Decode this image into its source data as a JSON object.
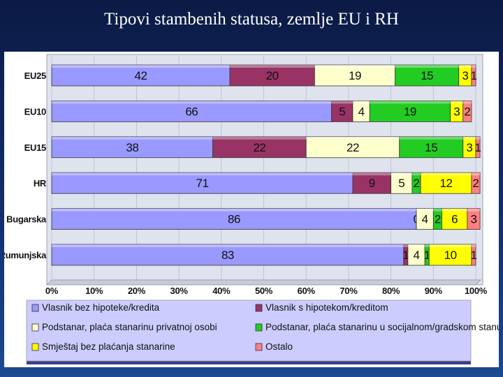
{
  "slide": {
    "title": "Tipovi stambenih statusa, zemlje EU i RH"
  },
  "chart_data": {
    "type": "bar",
    "orientation": "horizontal",
    "stacked": true,
    "categories": [
      "EU25",
      "EU10",
      "EU15",
      "HR",
      "Bugarska",
      "Rumunjska"
    ],
    "xlim": [
      0,
      100
    ],
    "xticks": [
      "0%",
      "10%",
      "20%",
      "30%",
      "40%",
      "50%",
      "60%",
      "70%",
      "80%",
      "90%",
      "100%"
    ],
    "legend_position": "bottom",
    "series": [
      {
        "name": "Vlasnik bez hipoteke/kredita",
        "color": "#9999ff",
        "values": [
          42,
          66,
          38,
          71,
          86,
          83
        ]
      },
      {
        "name": "Vlasnik s hipotekom/kreditom",
        "color": "#993366",
        "values": [
          20,
          5,
          22,
          9,
          0,
          1
        ]
      },
      {
        "name": "Podstanar, plaća stanarinu privatnoj osobi",
        "color": "#ffffcc",
        "values": [
          19,
          4,
          22,
          5,
          4,
          4
        ]
      },
      {
        "name": "Podstanar, plaća stanarinu u socijalnom/gradskom stanu",
        "color": "#22cc22",
        "values": [
          15,
          19,
          15,
          2,
          2,
          1
        ]
      },
      {
        "name": "Smještaj bez plaćanja stanarine",
        "color": "#ffff00",
        "values": [
          3,
          3,
          3,
          12,
          6,
          10
        ]
      },
      {
        "name": "Ostalo",
        "color": "#ff8080",
        "values": [
          1,
          2,
          1,
          2,
          3,
          1
        ]
      }
    ]
  }
}
